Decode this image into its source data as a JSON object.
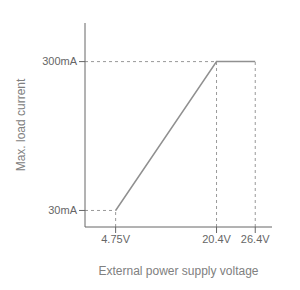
{
  "chart_data": {
    "type": "line",
    "xlabel": "External power supply voltage",
    "ylabel": "Max. load current",
    "x": [
      4.75,
      20.4,
      26.4
    ],
    "series": [
      {
        "values": [
          30,
          300,
          300
        ],
        "color": "#909090"
      }
    ],
    "xlim": [
      0,
      29
    ],
    "ylim": [
      0,
      370
    ],
    "xticks": [
      {
        "value": 4.75,
        "label": "4.75V"
      },
      {
        "value": 20.4,
        "label": "20.4V"
      },
      {
        "value": 26.4,
        "label": "26.4V"
      }
    ],
    "yticks": [
      {
        "value": 30,
        "label": "30mA"
      },
      {
        "value": 300,
        "label": "300mA"
      }
    ],
    "grid": false
  }
}
